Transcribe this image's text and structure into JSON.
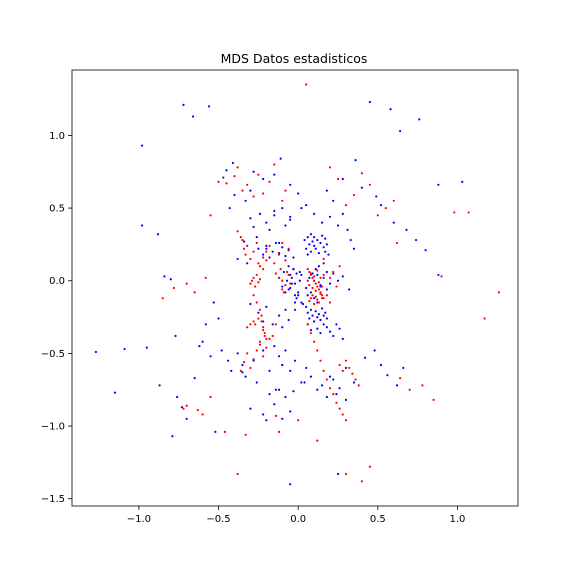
{
  "chart_data": {
    "type": "scatter",
    "title": "MDS Datos estadisticos",
    "xlabel": "",
    "ylabel": "",
    "xlim": [
      -1.42,
      1.38
    ],
    "ylim": [
      -1.55,
      1.45
    ],
    "xticks": [
      -1.0,
      -0.5,
      0.0,
      0.5,
      1.0
    ],
    "xtick_labels": [
      "−1.0",
      "−0.5",
      "0.0",
      "0.5",
      "1.0"
    ],
    "yticks": [
      -1.5,
      -1.0,
      -0.5,
      0.0,
      0.5,
      1.0
    ],
    "ytick_labels": [
      "−1.5",
      "−1.0",
      "−0.5",
      "0.0",
      "0.5",
      "1.0"
    ],
    "grid": false,
    "legend": "none",
    "colors": {
      "series_a": "#0000ff",
      "series_b": "#ff0000",
      "axes": "#000000"
    },
    "series": [
      {
        "color": "#0000ff",
        "x": [
          -1.27,
          -1.15,
          -1.09,
          -0.98,
          -0.95,
          -0.88,
          -0.84,
          -0.8,
          -0.77,
          -0.72,
          -0.66,
          -0.56,
          -0.52,
          -0.47,
          -0.43,
          -0.4,
          -0.35,
          -0.2,
          -0.05,
          0.25,
          0.45,
          0.58,
          0.64,
          0.76,
          0.88,
          1.03,
          -0.98,
          -0.87,
          -0.79,
          -0.76,
          -0.73,
          -0.7,
          -0.65,
          -0.6,
          -0.58,
          -0.53,
          -0.5,
          -0.45,
          -0.41,
          -0.33,
          -0.3,
          -0.28,
          -0.22,
          -0.15,
          -0.11,
          -0.05,
          0.28,
          0.36,
          0.4,
          0.49,
          0.52,
          0.6,
          0.68,
          0.74,
          0.8,
          0.88,
          -0.38,
          -0.34,
          -0.32,
          -0.3,
          -0.28,
          -0.26,
          -0.24,
          -0.2,
          -0.18,
          -0.15,
          -0.12,
          -0.08,
          -0.05,
          0.02,
          0.18,
          0.22,
          0.28,
          0.31,
          0.33,
          0.35,
          -0.62,
          -0.55,
          -0.48,
          -0.44,
          -0.42,
          -0.38,
          -0.35,
          -0.33,
          -0.28,
          -0.26,
          -0.22,
          -0.18,
          -0.14,
          -0.1,
          0.2,
          0.24,
          0.3,
          0.35,
          0.42,
          0.48,
          0.52,
          0.56,
          0.62,
          0.66,
          -0.3,
          -0.22,
          -0.18,
          -0.15,
          -0.12,
          -0.1,
          -0.08,
          -0.05,
          -0.03,
          0.04,
          -0.3,
          -0.25,
          -0.22,
          -0.2,
          -0.16,
          -0.12,
          -0.1,
          -0.08,
          -0.06,
          -0.02,
          -0.25,
          -0.22,
          -0.2,
          -0.18,
          -0.16,
          -0.14,
          -0.12,
          -0.1,
          -0.08,
          -0.06,
          -0.12,
          -0.1,
          -0.09,
          -0.08,
          -0.07,
          -0.06,
          -0.05,
          -0.04,
          -0.03,
          -0.02,
          0.04,
          0.05,
          0.06,
          0.06,
          0.07,
          0.08,
          0.08,
          0.09,
          0.1,
          0.1,
          0.11,
          0.12,
          0.13,
          0.14,
          0.15,
          0.16,
          0.17,
          0.17,
          0.18,
          0.19,
          0.05,
          0.06,
          0.07,
          0.08,
          0.09,
          0.1,
          0.11,
          0.12,
          0.13,
          0.14,
          0.15,
          0.16,
          0.17,
          0.18,
          0.05,
          0.06,
          0.07,
          0.08,
          0.09,
          0.1,
          0.11,
          0.12,
          0.13,
          0.14,
          0.16,
          0.18,
          0.06,
          0.08,
          0.1,
          0.12,
          0.14,
          0.16,
          0.18,
          0.2,
          0.22,
          0.24,
          0.26,
          0.28,
          0.1,
          0.12,
          0.14,
          0.16,
          0.18,
          0.2,
          0.22,
          0.25,
          0.28,
          0.32,
          -0.15,
          -0.12,
          -0.1,
          -0.08,
          -0.05,
          -0.02,
          0.02,
          0.05,
          0.08,
          0.12,
          0.15,
          0.18,
          0.22,
          0.26,
          0.3,
          -0.2,
          -0.15,
          -0.1,
          -0.05,
          0.0,
          0.05,
          0.1,
          0.15,
          0.2,
          0.25,
          -0.05,
          -0.04,
          -0.03,
          -0.02,
          -0.01,
          0.0,
          0.01,
          0.02,
          -0.06,
          -0.03,
          -0.01,
          0.01,
          0.03,
          -0.02,
          0.0,
          0.02
        ],
        "y": [
          -0.49,
          -0.77,
          -0.47,
          0.93,
          -0.46,
          0.32,
          0.03,
          0.01,
          -0.38,
          1.21,
          1.13,
          1.2,
          -1.04,
          0.71,
          0.5,
          0.59,
          -0.63,
          -0.96,
          -1.4,
          -1.33,
          1.23,
          1.18,
          1.03,
          1.11,
          0.66,
          0.68,
          0.38,
          -0.72,
          -1.07,
          -0.8,
          -0.87,
          -0.95,
          -0.67,
          -0.42,
          -0.3,
          -0.15,
          -0.26,
          0.76,
          0.81,
          0.55,
          0.62,
          0.75,
          0.7,
          0.73,
          0.84,
          0.66,
          0.7,
          0.83,
          0.64,
          0.58,
          0.52,
          0.4,
          0.35,
          0.28,
          0.21,
          0.04,
          0.15,
          0.27,
          0.12,
          0.43,
          0.37,
          0.3,
          0.46,
          0.22,
          0.35,
          0.48,
          0.26,
          0.38,
          0.44,
          0.5,
          0.62,
          0.55,
          0.46,
          0.35,
          0.28,
          0.22,
          -0.45,
          -0.52,
          -0.48,
          -0.55,
          -0.62,
          -0.5,
          -0.58,
          -0.66,
          -0.55,
          -0.7,
          -0.48,
          -0.62,
          -0.75,
          -0.58,
          -0.66,
          -0.78,
          -0.6,
          -0.7,
          -0.53,
          -0.48,
          -0.58,
          -0.65,
          -0.72,
          -0.6,
          -0.88,
          -0.92,
          -0.78,
          -0.85,
          -0.75,
          -0.95,
          -0.8,
          -0.9,
          -0.76,
          -0.7,
          -0.16,
          -0.22,
          -0.28,
          -0.18,
          -0.3,
          -0.24,
          -0.32,
          -0.2,
          -0.27,
          -0.15,
          0.22,
          0.18,
          0.24,
          0.16,
          0.2,
          0.26,
          0.19,
          0.23,
          0.17,
          0.21,
          0.02,
          -0.04,
          0.06,
          -0.08,
          0.0,
          -0.06,
          0.04,
          -0.02,
          0.08,
          -0.1,
          0.28,
          0.22,
          0.3,
          0.18,
          0.25,
          0.32,
          0.2,
          0.27,
          0.24,
          0.3,
          0.22,
          0.28,
          0.19,
          0.26,
          0.31,
          0.23,
          0.2,
          0.29,
          0.25,
          0.18,
          -0.18,
          -0.22,
          -0.26,
          -0.2,
          -0.24,
          -0.28,
          -0.21,
          -0.25,
          -0.23,
          -0.27,
          -0.19,
          -0.24,
          -0.22,
          -0.26,
          -0.05,
          -0.1,
          0.02,
          -0.08,
          0.05,
          -0.12,
          0.08,
          -0.15,
          0.1,
          -0.03,
          0.12,
          -0.06,
          -0.3,
          -0.34,
          -0.28,
          -0.33,
          -0.36,
          -0.3,
          -0.32,
          -0.35,
          -0.38,
          -0.3,
          -0.33,
          -0.4,
          0.0,
          0.04,
          -0.04,
          0.02,
          0.06,
          -0.02,
          0.05,
          0.0,
          0.03,
          -0.06,
          -0.45,
          -0.52,
          -0.58,
          -0.48,
          -0.62,
          -0.55,
          -0.7,
          -0.6,
          -0.66,
          -0.75,
          -0.72,
          -0.8,
          -0.68,
          -0.74,
          -0.82,
          0.4,
          0.45,
          0.5,
          0.42,
          0.6,
          0.52,
          0.46,
          0.4,
          0.44,
          0.38,
          -0.05,
          0.02,
          0.08,
          -0.02,
          0.05,
          -0.08,
          0.0,
          0.04,
          0.1,
          0.16,
          -0.12,
          0.06,
          -0.16,
          -0.2,
          -0.1,
          -0.15
        ]
      },
      {
        "color": "#ff0000",
        "x": [
          -0.72,
          -0.7,
          -0.63,
          -0.6,
          -0.55,
          -0.46,
          -0.38,
          -0.33,
          -0.14,
          -0.12,
          0.0,
          0.12,
          0.3,
          0.4,
          0.45,
          0.64,
          0.7,
          0.78,
          0.85,
          0.9,
          0.98,
          1.07,
          1.17,
          1.26,
          -0.85,
          -0.78,
          -0.7,
          -0.65,
          -0.58,
          -0.55,
          0.05,
          -0.5,
          -0.45,
          -0.4,
          -0.38,
          -0.35,
          -0.32,
          -0.28,
          -0.25,
          -0.22,
          -0.18,
          -0.15,
          -0.1,
          -0.08,
          0.2,
          0.25,
          0.3,
          0.35,
          0.4,
          0.45,
          0.5,
          0.55,
          0.6,
          0.62,
          -0.38,
          -0.36,
          -0.35,
          -0.34,
          -0.33,
          -0.32,
          -0.3,
          -0.28,
          -0.26,
          -0.25,
          -0.24,
          -0.22,
          -0.2,
          -0.28,
          -0.26,
          -0.24,
          -0.23,
          -0.22,
          -0.21,
          -0.2,
          -0.27,
          -0.25,
          -0.23,
          -0.22,
          -0.21,
          -0.24,
          -0.3,
          -0.29,
          -0.28,
          -0.27,
          -0.26,
          -0.25,
          -0.24,
          -0.32,
          -0.3,
          -0.28,
          -0.22,
          -0.2,
          -0.18,
          -0.15,
          -0.12,
          -0.1,
          -0.08,
          -0.06,
          -0.14,
          -0.12,
          -0.1,
          -0.08,
          -0.06,
          -0.1,
          -0.11,
          -0.09,
          -0.07,
          -0.05,
          0.06,
          0.07,
          0.08,
          0.09,
          0.1,
          0.11,
          0.12,
          0.13,
          0.14,
          0.15,
          0.16,
          0.06,
          0.07,
          0.08,
          0.09,
          0.1,
          0.11,
          0.12,
          0.13,
          0.14,
          0.15,
          0.16,
          0.07,
          0.08,
          0.09,
          0.1,
          0.11,
          0.12,
          0.13,
          0.14,
          0.15,
          0.06,
          0.08,
          0.1,
          0.12,
          0.14,
          0.16,
          0.18,
          0.2,
          0.22,
          0.24,
          0.26,
          0.28,
          0.3,
          0.2,
          0.22,
          0.24,
          0.26,
          0.18,
          0.2,
          0.16,
          0.3,
          0.32,
          0.34,
          0.36,
          0.38,
          0.26,
          0.28,
          -0.36,
          -0.34,
          -0.32,
          -0.3,
          -0.28,
          -0.26,
          -0.24,
          -0.22,
          -0.2,
          -0.18,
          -0.16,
          -0.14
        ],
        "y": [
          -0.88,
          -0.86,
          -0.89,
          -0.92,
          -0.8,
          -1.04,
          -1.33,
          -1.06,
          -0.93,
          -1.04,
          -0.96,
          -1.1,
          -1.33,
          -1.38,
          -1.28,
          -0.67,
          -0.75,
          -0.72,
          -0.82,
          0.03,
          0.47,
          0.47,
          -0.26,
          -0.08,
          -0.12,
          -0.05,
          -0.02,
          -0.08,
          0.02,
          0.45,
          1.35,
          0.68,
          0.67,
          0.72,
          0.78,
          0.62,
          0.66,
          0.58,
          0.73,
          0.6,
          0.68,
          0.8,
          0.55,
          0.62,
          0.78,
          0.7,
          0.52,
          0.59,
          0.74,
          0.66,
          0.45,
          0.5,
          0.55,
          0.26,
          0.34,
          0.3,
          0.28,
          0.22,
          0.18,
          0.24,
          0.15,
          0.2,
          0.26,
          0.12,
          0.1,
          0.08,
          0.14,
          -0.1,
          -0.15,
          -0.2,
          -0.28,
          -0.32,
          -0.36,
          -0.4,
          -0.3,
          -0.26,
          -0.24,
          -0.34,
          -0.38,
          -0.42,
          -0.02,
          0.0,
          0.02,
          -0.04,
          0.04,
          -0.01,
          0.01,
          -0.32,
          -0.3,
          -0.28,
          0.16,
          0.2,
          0.24,
          0.12,
          0.18,
          0.26,
          0.14,
          0.22,
          0.05,
          0.02,
          0.0,
          -0.03,
          0.04,
          -0.06,
          0.08,
          -0.08,
          0.06,
          -0.02,
          0.08,
          0.06,
          0.04,
          0.02,
          0.0,
          -0.02,
          -0.04,
          -0.06,
          -0.08,
          -0.1,
          -0.12,
          0.0,
          -0.03,
          0.05,
          -0.05,
          0.03,
          -0.07,
          0.07,
          -0.01,
          0.02,
          -0.04,
          0.04,
          -0.14,
          -0.12,
          -0.1,
          -0.16,
          -0.11,
          -0.13,
          -0.15,
          -0.09,
          -0.12,
          -0.3,
          -0.36,
          -0.42,
          -0.48,
          -0.55,
          -0.62,
          -0.68,
          -0.74,
          -0.78,
          -0.84,
          -0.88,
          -0.92,
          -0.96,
          0.02,
          0.06,
          -0.04,
          0.1,
          -0.1,
          -0.15,
          0.15,
          -0.55,
          -0.6,
          -0.64,
          -0.68,
          -0.72,
          -0.58,
          -0.62,
          -0.62,
          -0.56,
          -0.5,
          -0.6,
          -0.54,
          -0.48,
          -0.44,
          -0.52,
          -0.46,
          -0.4,
          -0.38,
          -0.3
        ]
      }
    ]
  }
}
